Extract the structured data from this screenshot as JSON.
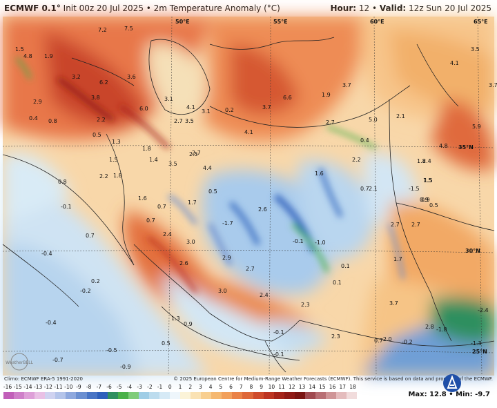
{
  "header": {
    "model": "ECMWF 0.1°",
    "run_info": "Init 00z 20 Jul 2025 • 2m Temperature Anomaly (°C)",
    "hour_label": "Hour:",
    "hour_value": "12",
    "valid_label": "Valid:",
    "valid_value": "12z Sun 20 Jul 2025"
  },
  "footer": {
    "climo": "Climo: ECMWF ERA-5 1991-2020",
    "copyright": "© 2025 European Centre for Medium-Range Weather Forecasts (ECMWF). This service is based on data and products of the ECMWF.",
    "max_label": "Max:",
    "max_value": "12.8",
    "min_label": "Min:",
    "min_value": "-9.7",
    "watermark": "WeatherBELL"
  },
  "colorbar": {
    "ticks": [
      "-16",
      "-15",
      "-14",
      "-13",
      "-12",
      "-11",
      "-10",
      "-9",
      "-8",
      "-7",
      "-6",
      "-5",
      "-4",
      "-3",
      "-2",
      "-1",
      "0",
      "1",
      "2",
      "3",
      "4",
      "5",
      "6",
      "7",
      "8",
      "9",
      "10",
      "11",
      "12",
      "13",
      "14",
      "15",
      "16",
      "17",
      "18"
    ],
    "colors": [
      "#c15fb9",
      "#cf7fc9",
      "#de9fd8",
      "#e9c0e5",
      "#cfd2f0",
      "#b4c4ea",
      "#8ea8de",
      "#6b8fd1",
      "#4874c5",
      "#2d5fbb",
      "#2f8f5f",
      "#49b048",
      "#7fcc7a",
      "#9fcde6",
      "#bcdcee",
      "#d6eaf6",
      "#eef6fb",
      "#fbf3d8",
      "#fae2b4",
      "#f8cf90",
      "#f5b870",
      "#f2a05b",
      "#ea8246",
      "#de6738",
      "#cf4b2b",
      "#bd3522",
      "#a5241a",
      "#8f1a16",
      "#7a1412",
      "#a04a50",
      "#b86f74",
      "#cf9597",
      "#e4bcbd",
      "#f1dcdc"
    ]
  },
  "map": {
    "coord_labels": [
      "50°E",
      "55°E",
      "60°E",
      "65°E",
      "35°N",
      "30°N",
      "25°N"
    ],
    "values": [
      "7.2",
      "7.5",
      "1.5",
      "4.8",
      "1.9",
      "3.2",
      "6.2",
      "3.6",
      "3.8",
      "2.9",
      "0.4",
      "0.8",
      "2.2",
      "6.0",
      "3.1",
      "4.1",
      "3.1",
      "0.2",
      "3.7",
      "6.6",
      "3.7",
      "1.9",
      "2.7",
      "4.1",
      "3.5",
      "2.7",
      "5.0",
      "2.1",
      "0.5",
      "1.3",
      "1.5",
      "1.8",
      "2.7",
      "0.4",
      "1.8",
      "1.4",
      "3.5",
      "2.5",
      "2.2",
      "4.4",
      "1.6",
      "2.4",
      "0.8",
      "2.2",
      "1.5",
      "0.5",
      "0.7",
      "-0.1",
      "1.6",
      "0.7",
      "1.7",
      "2.6",
      "0.9",
      "0.7",
      "-1.7",
      "2.7",
      "0.7",
      "2.4",
      "3.0",
      "-0.1",
      "-1.0",
      "-0.4",
      "2.6",
      "2.9",
      "0.1",
      "1.7",
      "0.2",
      "2.7",
      "-0.2",
      "3.0",
      "2.4",
      "3.7",
      "-2.4",
      "1.3",
      "0.9",
      "2.3",
      "-0.4",
      "-0.1",
      "-1.8",
      "0.5",
      "-0.1",
      "2.3",
      "-2.0",
      "-0.2",
      "-1.3",
      "-0.5",
      "-0.7",
      "-0.9",
      "2.7",
      "0.9",
      "5.9",
      "4.8",
      "4.1",
      "3.5",
      "3.7",
      "1.5",
      "0.5",
      "2.1",
      "-1.5",
      "1.8",
      "0.1",
      "0.7",
      "2.8"
    ]
  }
}
